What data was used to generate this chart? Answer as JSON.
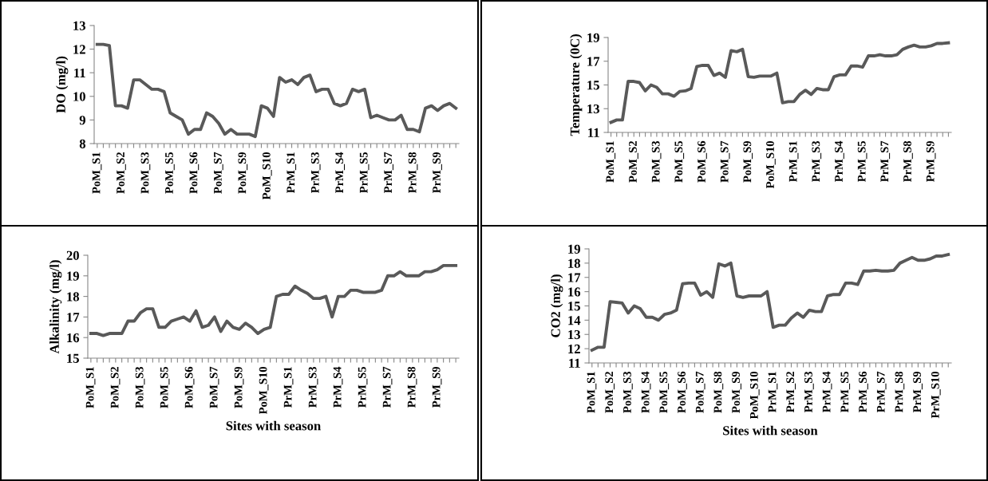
{
  "chart_data": [
    {
      "type": "line",
      "ylabel": "DO (mg/l)",
      "ylim": [
        8,
        13
      ],
      "yticks": [
        8,
        9,
        10,
        11,
        12,
        13
      ],
      "grid": false,
      "legend": false,
      "marker": "none",
      "line_style": "solid",
      "categories": [
        "PoM_S1",
        null,
        null,
        null,
        "PoM_S2",
        null,
        null,
        null,
        "PoM_S3",
        null,
        null,
        null,
        "PoM_S5",
        null,
        null,
        null,
        "PoM_S6",
        null,
        null,
        null,
        "PoM_S7",
        null,
        null,
        null,
        "PoM_S9",
        null,
        null,
        null,
        "PoM_S10",
        null,
        null,
        null,
        "PrM_S1",
        null,
        null,
        null,
        "PrM_S3",
        null,
        null,
        null,
        "PrM_S4",
        null,
        null,
        null,
        "PrM_S5",
        null,
        null,
        null,
        "PrM_S7",
        null,
        null,
        null,
        "PrM_S8",
        null,
        null,
        null,
        "PrM_S9",
        null,
        null,
        null
      ],
      "series": [
        {
          "color": "#595959",
          "values": [
            12.2,
            12.2,
            12.15,
            9.6,
            9.6,
            9.5,
            10.7,
            10.7,
            10.5,
            10.3,
            10.3,
            10.2,
            9.3,
            9.15,
            9.0,
            8.4,
            8.6,
            8.6,
            9.3,
            9.15,
            8.85,
            8.4,
            8.6,
            8.4,
            8.4,
            8.4,
            8.3,
            9.6,
            9.5,
            9.15,
            10.8,
            10.6,
            10.7,
            10.5,
            10.8,
            10.9,
            10.2,
            10.3,
            10.3,
            9.7,
            9.6,
            9.7,
            10.3,
            10.2,
            10.3,
            9.1,
            9.2,
            9.1,
            9.0,
            9.0,
            9.2,
            8.6,
            8.6,
            8.5,
            9.5,
            9.6,
            9.4,
            9.6,
            9.7,
            9.5
          ]
        }
      ]
    },
    {
      "type": "line",
      "ylabel": "Temperature (0C)",
      "ylim": [
        11,
        19
      ],
      "yticks": [
        11,
        13,
        15,
        17,
        19
      ],
      "grid": false,
      "legend": false,
      "marker": "none",
      "line_style": "solid",
      "categories": [
        "PoM_S1",
        null,
        null,
        null,
        "PoM_S2",
        null,
        null,
        null,
        "PoM_S3",
        null,
        null,
        null,
        "PoM_S5",
        null,
        null,
        null,
        "PoM_S6",
        null,
        null,
        null,
        "PoM_S7",
        null,
        null,
        null,
        "PoM_S9",
        null,
        null,
        null,
        "PoM_S10",
        null,
        null,
        null,
        "PrM_S1",
        null,
        null,
        null,
        "PrM_S3",
        null,
        null,
        null,
        "PrM_S4",
        null,
        null,
        null,
        "PrM_S5",
        null,
        null,
        null,
        "PrM_S7",
        null,
        null,
        null,
        "PrM_S8",
        null,
        null,
        null,
        "PrM_S9",
        null,
        null,
        null
      ],
      "series": [
        {
          "color": "#595959",
          "values": [
            11.85,
            12.05,
            12.05,
            15.3,
            15.3,
            15.2,
            14.5,
            15.0,
            14.8,
            14.25,
            14.25,
            14.05,
            14.45,
            14.5,
            14.7,
            16.55,
            16.65,
            16.65,
            15.8,
            16.0,
            15.65,
            17.9,
            17.8,
            18.0,
            15.7,
            15.65,
            15.75,
            15.75,
            15.75,
            16.0,
            13.5,
            13.6,
            13.6,
            14.2,
            14.55,
            14.2,
            14.7,
            14.6,
            14.6,
            15.7,
            15.85,
            15.85,
            16.6,
            16.6,
            16.5,
            17.45,
            17.45,
            17.55,
            17.45,
            17.45,
            17.55,
            18.0,
            18.2,
            18.35,
            18.2,
            18.2,
            18.3,
            18.5,
            18.5,
            18.55
          ]
        }
      ]
    },
    {
      "type": "line",
      "ylabel": "Alkalinity (mg/l)",
      "xlabel": "Sites with season",
      "ylim": [
        15,
        20
      ],
      "yticks": [
        15,
        16,
        17,
        18,
        19,
        20
      ],
      "grid": false,
      "legend": false,
      "marker": "none",
      "line_style": "solid",
      "categories": [
        "PoM_S1",
        null,
        null,
        null,
        "PoM_S2",
        null,
        null,
        null,
        "PoM_S3",
        null,
        null,
        null,
        "PoM_S5",
        null,
        null,
        null,
        "PoM_S6",
        null,
        null,
        null,
        "PoM_S7",
        null,
        null,
        null,
        "PoM_S9",
        null,
        null,
        null,
        "PoM_S10",
        null,
        null,
        null,
        "PrM_S1",
        null,
        null,
        null,
        "PrM_S3",
        null,
        null,
        null,
        "PrM_S4",
        null,
        null,
        null,
        "PrM_S5",
        null,
        null,
        null,
        "PrM_S7",
        null,
        null,
        null,
        "PrM_S8",
        null,
        null,
        null,
        "PrM_S9",
        null,
        null,
        null
      ],
      "series": [
        {
          "color": "#595959",
          "values": [
            16.2,
            16.2,
            16.1,
            16.2,
            16.2,
            16.2,
            16.8,
            16.8,
            17.2,
            17.4,
            17.4,
            16.5,
            16.5,
            16.8,
            16.9,
            17.0,
            16.8,
            17.3,
            16.5,
            16.6,
            17.0,
            16.3,
            16.8,
            16.5,
            16.4,
            16.7,
            16.5,
            16.2,
            16.4,
            16.5,
            18.0,
            18.1,
            18.1,
            18.5,
            18.3,
            18.15,
            17.9,
            17.9,
            18.0,
            17.0,
            18.0,
            18.0,
            18.3,
            18.3,
            18.2,
            18.2,
            18.2,
            18.3,
            19.0,
            19.0,
            19.2,
            19.0,
            19.0,
            19.0,
            19.2,
            19.2,
            19.3,
            19.5,
            19.5,
            19.5
          ]
        }
      ]
    },
    {
      "type": "line",
      "ylabel": "CO2 (mg/l)",
      "xlabel": "Sites with season",
      "ylim": [
        11,
        19
      ],
      "yticks": [
        11,
        12,
        13,
        14,
        15,
        16,
        17,
        18,
        19
      ],
      "grid": false,
      "legend": false,
      "marker": "none",
      "line_style": "solid",
      "categories": [
        "PoM_S1",
        null,
        null,
        "PoM_S2",
        null,
        null,
        "PoM_S3",
        null,
        null,
        "PoM_S4",
        null,
        null,
        "PoM_S5",
        null,
        null,
        "PoM_S6",
        null,
        null,
        "PoM_S7",
        null,
        null,
        "PoM_S8",
        null,
        null,
        "PoM_S9",
        null,
        null,
        "PoM_S10",
        null,
        null,
        "PrM_S1",
        null,
        null,
        "PrM_S2",
        null,
        null,
        "PrM_S3",
        null,
        null,
        "PrM_S4",
        null,
        null,
        "PrM_S5",
        null,
        null,
        "PrM_S6",
        null,
        null,
        "PrM_S7",
        null,
        null,
        "PrM_S8",
        null,
        null,
        "PrM_S9",
        null,
        null,
        "PrM_S10",
        null,
        null
      ],
      "series": [
        {
          "color": "#595959",
          "values": [
            11.9,
            12.1,
            12.1,
            15.3,
            15.25,
            15.2,
            14.5,
            15.0,
            14.8,
            14.2,
            14.2,
            14.0,
            14.4,
            14.5,
            14.7,
            16.55,
            16.6,
            16.6,
            15.75,
            16.0,
            15.6,
            17.95,
            17.8,
            18.0,
            15.7,
            15.6,
            15.7,
            15.7,
            15.7,
            16.0,
            13.5,
            13.65,
            13.65,
            14.15,
            14.5,
            14.2,
            14.7,
            14.6,
            14.6,
            15.7,
            15.8,
            15.8,
            16.6,
            16.6,
            16.5,
            17.45,
            17.45,
            17.5,
            17.45,
            17.45,
            17.5,
            18.0,
            18.2,
            18.4,
            18.2,
            18.2,
            18.3,
            18.5,
            18.5,
            18.6
          ]
        }
      ]
    }
  ]
}
